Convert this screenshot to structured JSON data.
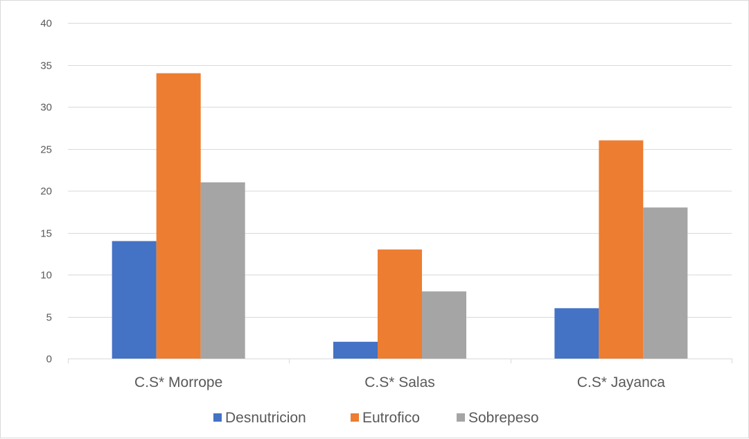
{
  "chart_data": {
    "type": "bar",
    "categories": [
      "C.S* Morrope",
      "C.S* Salas",
      "C.S* Jayanca"
    ],
    "series": [
      {
        "name": "Desnutricion",
        "values": [
          14,
          2,
          6
        ],
        "color": "#4472c4"
      },
      {
        "name": "Eutrofico",
        "values": [
          34,
          13,
          26
        ],
        "color": "#ed7d31"
      },
      {
        "name": "Sobrepeso",
        "values": [
          21,
          8,
          18
        ],
        "color": "#a5a5a5"
      }
    ],
    "ylim": [
      0,
      40
    ],
    "yticks": [
      0,
      5,
      10,
      15,
      20,
      25,
      30,
      35,
      40
    ],
    "grid": true,
    "legend_position": "bottom"
  }
}
